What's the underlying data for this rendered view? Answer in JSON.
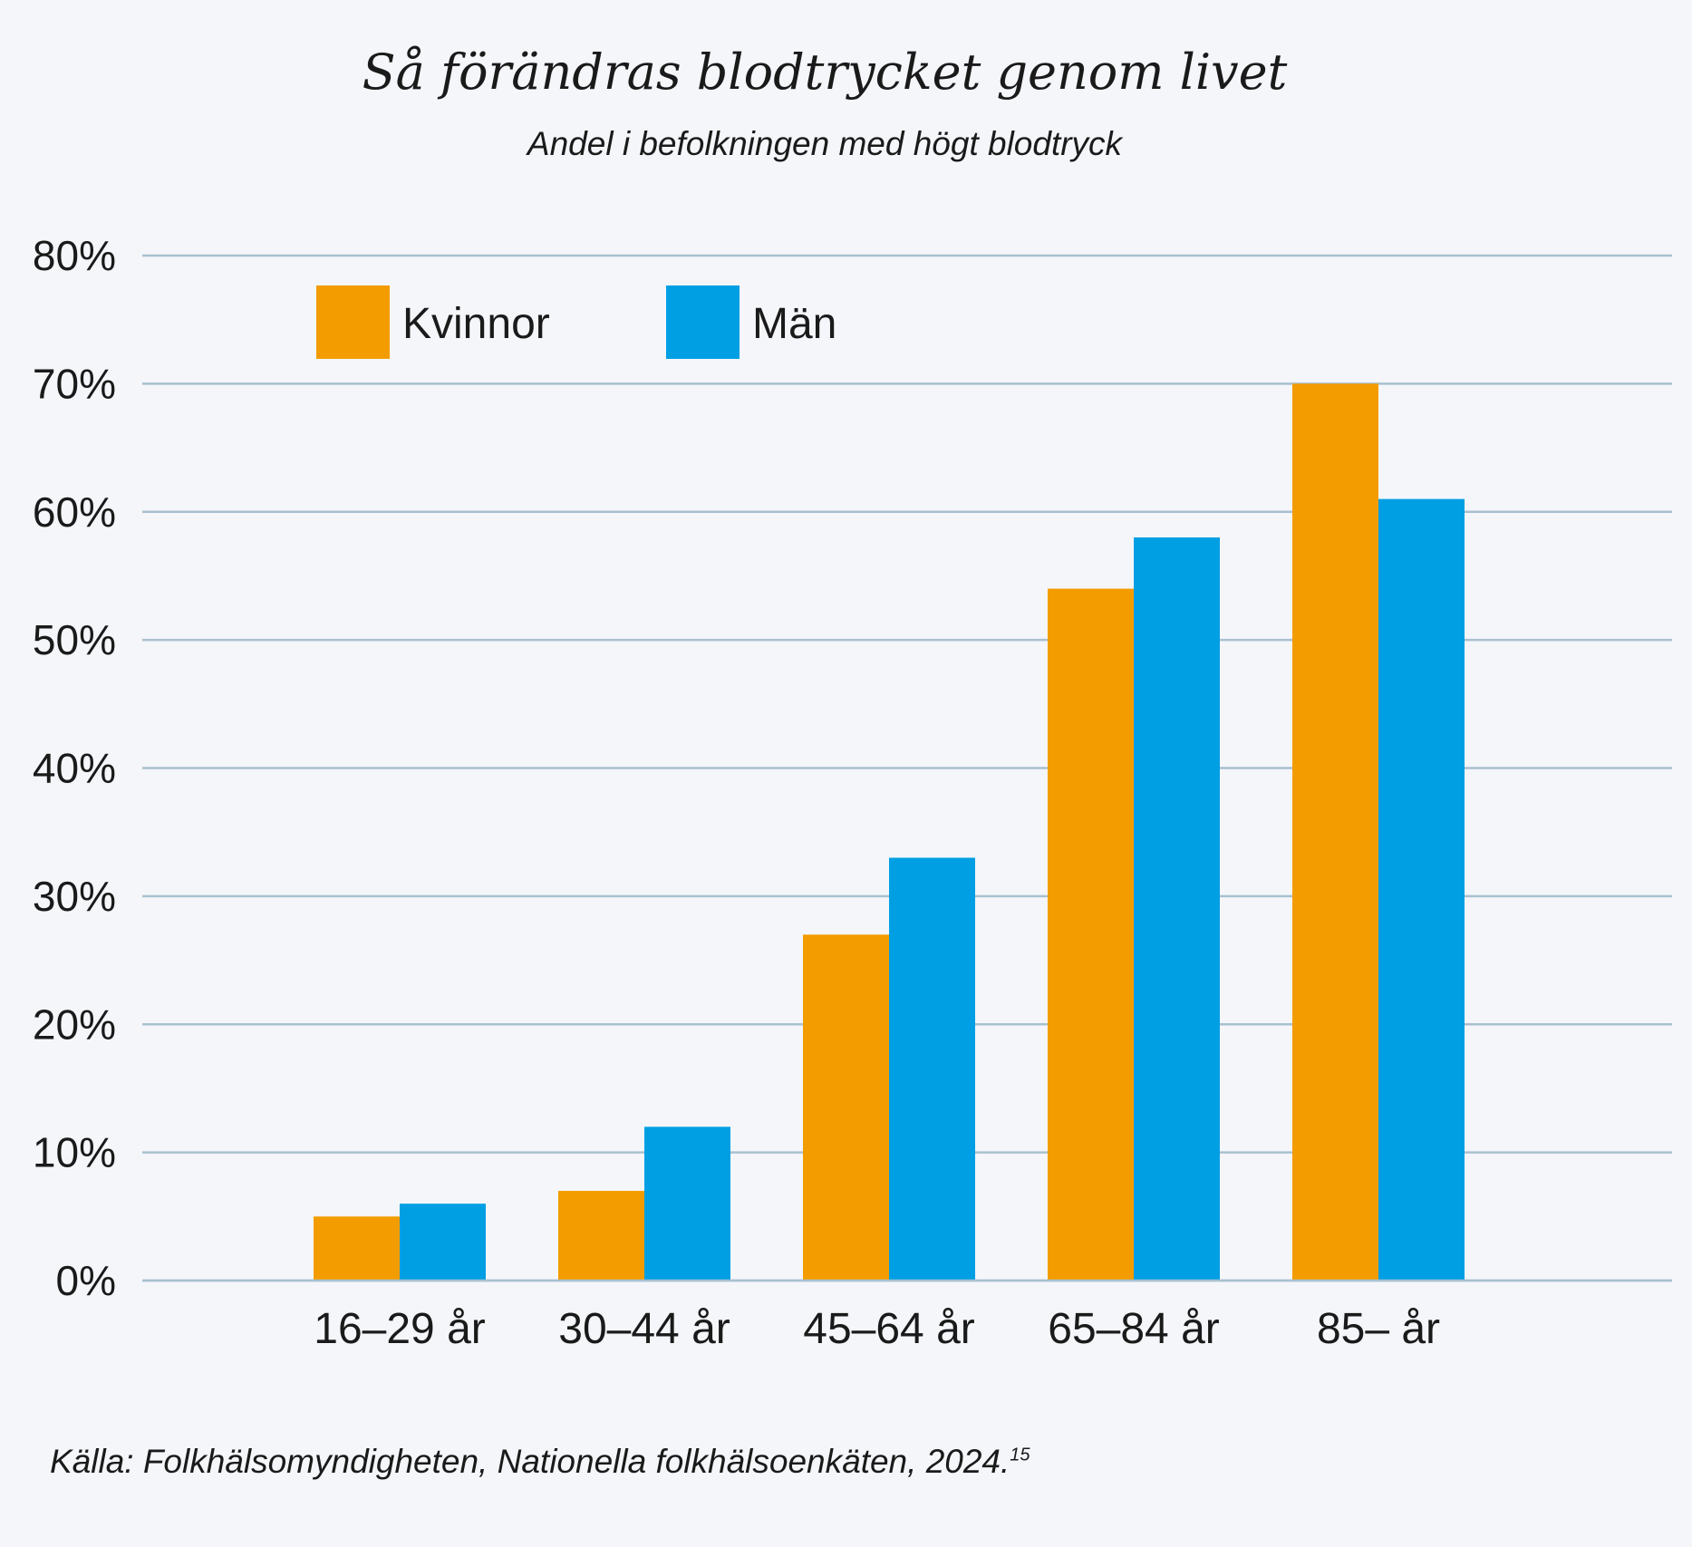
{
  "chart_data": {
    "type": "bar",
    "title": "Så förändras blodtrycket genom livet",
    "subtitle": "Andel i befolkningen med högt blodtryck",
    "categories": [
      "16–29 år",
      "30–44 år",
      "45–64 år",
      "65–84 år",
      "85– år"
    ],
    "series": [
      {
        "name": "Kvinnor",
        "values": [
          5,
          7,
          27,
          54,
          70
        ],
        "color": "#f39c00"
      },
      {
        "name": "Män",
        "values": [
          6,
          12,
          33,
          58,
          61
        ],
        "color": "#009fe3"
      }
    ],
    "ylim": [
      0,
      80
    ],
    "yticks": [
      0,
      10,
      20,
      30,
      40,
      50,
      60,
      70,
      80
    ],
    "ytick_labels": [
      "0%",
      "10%",
      "20%",
      "30%",
      "40%",
      "50%",
      "60%",
      "70%",
      "80%"
    ],
    "grid": true,
    "grid_color": "#a9c0d0",
    "legend_position": "top-left",
    "xlabel": "",
    "ylabel": ""
  },
  "source": {
    "text": "Källa: Folkhälsomyndigheten, Nationella folkhälsoenkäten, 2024.",
    "footnote": "15"
  }
}
